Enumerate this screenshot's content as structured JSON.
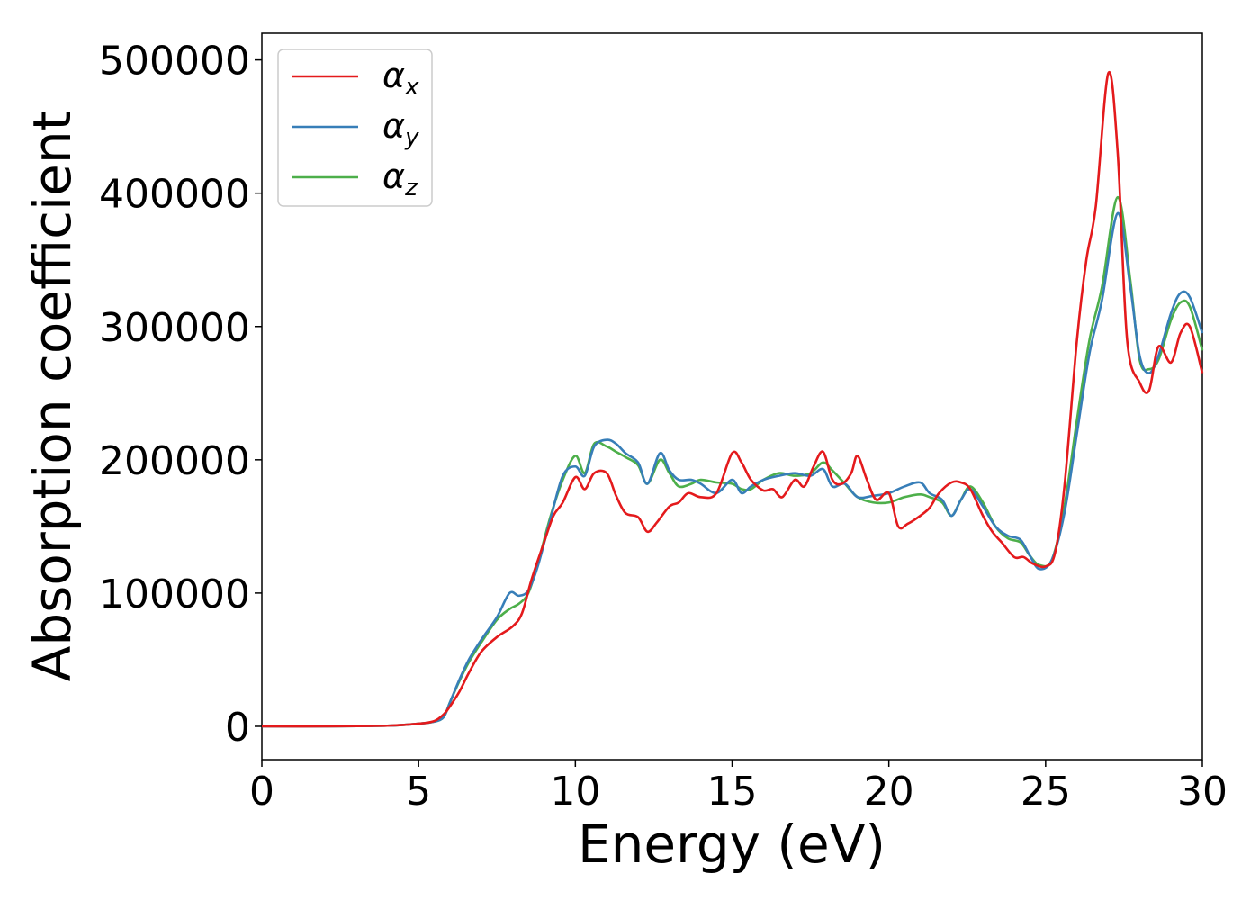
{
  "chart_data": {
    "type": "line",
    "xlabel": "Energy (eV)",
    "ylabel": "Absorption coefficient",
    "xlim": [
      0,
      30
    ],
    "ylim": [
      -25000,
      520000
    ],
    "xticks": [
      0,
      5,
      10,
      15,
      20,
      25,
      30
    ],
    "xtick_labels": [
      "0",
      "5",
      "10",
      "15",
      "20",
      "25",
      "30"
    ],
    "yticks": [
      0,
      100000,
      200000,
      300000,
      400000,
      500000
    ],
    "ytick_labels": [
      "0",
      "100000",
      "200000",
      "300000",
      "400000",
      "500000"
    ],
    "grid": false,
    "legend_position": "top-left",
    "series": [
      {
        "name": "α",
        "subscript": "x",
        "color": "#e41a1c",
        "x": [
          0,
          2,
          4,
          5,
          5.5,
          5.8,
          6,
          6.3,
          6.6,
          7,
          7.5,
          8,
          8.3,
          8.6,
          9,
          9.3,
          9.6,
          10,
          10.3,
          10.6,
          11,
          11.3,
          11.6,
          12,
          12.3,
          12.6,
          13,
          13.3,
          13.6,
          14,
          14.5,
          15,
          15.3,
          15.6,
          16,
          16.3,
          16.6,
          17,
          17.3,
          17.6,
          17.9,
          18.2,
          18.5,
          18.8,
          19,
          19.3,
          19.6,
          20,
          20.3,
          20.6,
          21,
          21.3,
          21.6,
          22,
          22.3,
          22.6,
          23,
          23.3,
          23.6,
          24,
          24.3,
          24.6,
          25,
          25.3,
          25.6,
          26,
          26.3,
          26.6,
          27,
          27.3,
          27.6,
          28,
          28.3,
          28.6,
          29,
          29.3,
          29.6,
          30
        ],
        "y": [
          0,
          0,
          500,
          2000,
          4000,
          9000,
          15000,
          26000,
          40000,
          56000,
          67000,
          75000,
          85000,
          110000,
          138000,
          158000,
          168000,
          187000,
          178000,
          190000,
          190000,
          173000,
          160000,
          157000,
          146000,
          153000,
          165000,
          168000,
          175000,
          172000,
          175000,
          205000,
          198000,
          185000,
          177000,
          178000,
          172000,
          185000,
          180000,
          195000,
          206000,
          185000,
          182000,
          190000,
          203000,
          185000,
          170000,
          175000,
          150000,
          152000,
          158000,
          164000,
          175000,
          183000,
          183000,
          178000,
          158000,
          146000,
          138000,
          127000,
          127000,
          122000,
          120000,
          130000,
          180000,
          290000,
          350000,
          390000,
          490000,
          430000,
          290000,
          258000,
          252000,
          285000,
          273000,
          295000,
          300000,
          265000
        ]
      },
      {
        "name": "α",
        "subscript": "y",
        "color": "#377eb8",
        "x": [
          0,
          2,
          4,
          5,
          5.5,
          5.8,
          6,
          6.3,
          6.6,
          7,
          7.5,
          7.9,
          8.2,
          8.5,
          8.8,
          9.2,
          9.6,
          10,
          10.3,
          10.6,
          11,
          11.3,
          11.6,
          12,
          12.3,
          12.7,
          13,
          13.3,
          13.7,
          14,
          14.5,
          15,
          15.3,
          15.6,
          16,
          16.5,
          17,
          17.5,
          17.9,
          18.2,
          18.6,
          19,
          19.5,
          20,
          20.5,
          21,
          21.3,
          21.7,
          22,
          22.3,
          22.6,
          23,
          23.4,
          23.8,
          24.2,
          24.5,
          24.8,
          25.2,
          25.6,
          26,
          26.4,
          26.8,
          27.3,
          27.7,
          28,
          28.3,
          28.6,
          29,
          29.3,
          29.6,
          30
        ],
        "y": [
          0,
          0,
          500,
          2000,
          3500,
          7000,
          18000,
          35000,
          50000,
          65000,
          82000,
          100000,
          98000,
          102000,
          120000,
          155000,
          188000,
          195000,
          188000,
          210000,
          215000,
          212000,
          205000,
          198000,
          182000,
          205000,
          192000,
          185000,
          185000,
          182000,
          175000,
          185000,
          175000,
          180000,
          185000,
          188000,
          190000,
          188000,
          193000,
          180000,
          182000,
          172000,
          173000,
          175000,
          180000,
          183000,
          175000,
          170000,
          158000,
          170000,
          178000,
          165000,
          150000,
          143000,
          140000,
          128000,
          118000,
          125000,
          160000,
          220000,
          280000,
          320000,
          385000,
          330000,
          278000,
          265000,
          278000,
          310000,
          325000,
          322000,
          295000
        ]
      },
      {
        "name": "α",
        "subscript": "z",
        "color": "#4daf4a",
        "x": [
          0,
          2,
          4,
          5,
          5.5,
          5.8,
          6,
          6.3,
          6.6,
          7,
          7.5,
          7.9,
          8.2,
          8.5,
          8.8,
          9.2,
          9.6,
          10,
          10.3,
          10.6,
          11,
          11.3,
          11.6,
          12,
          12.3,
          12.7,
          13,
          13.3,
          13.7,
          14,
          14.5,
          15,
          15.3,
          15.6,
          16,
          16.5,
          17,
          17.5,
          17.9,
          18.2,
          18.6,
          19,
          19.5,
          20,
          20.5,
          21,
          21.3,
          21.7,
          22,
          22.3,
          22.6,
          23,
          23.4,
          23.8,
          24.2,
          24.5,
          24.8,
          25.2,
          25.6,
          26,
          26.4,
          26.8,
          27.3,
          27.7,
          28,
          28.3,
          28.6,
          29,
          29.3,
          29.6,
          30
        ],
        "y": [
          0,
          0,
          500,
          2000,
          3500,
          7000,
          18000,
          34000,
          48000,
          63000,
          80000,
          88000,
          92000,
          100000,
          122000,
          157000,
          185000,
          203000,
          190000,
          212000,
          210000,
          206000,
          202000,
          196000,
          182000,
          200000,
          190000,
          180000,
          182000,
          185000,
          183000,
          182000,
          178000,
          178000,
          185000,
          190000,
          188000,
          190000,
          198000,
          192000,
          182000,
          172000,
          168000,
          168000,
          172000,
          174000,
          172000,
          168000,
          158000,
          170000,
          180000,
          168000,
          150000,
          141000,
          138000,
          128000,
          121000,
          125000,
          165000,
          230000,
          290000,
          330000,
          397000,
          335000,
          275000,
          268000,
          275000,
          305000,
          318000,
          315000,
          282000
        ]
      }
    ]
  }
}
